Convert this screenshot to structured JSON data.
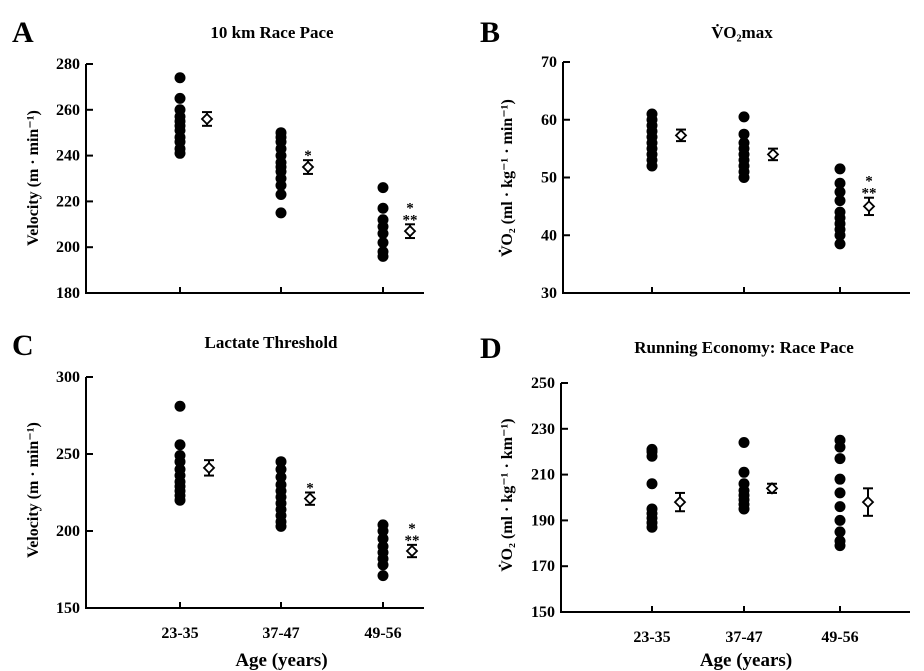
{
  "chart_data": [
    {
      "type": "scatter",
      "panel": "A",
      "title": "10 km Race Pace",
      "ylabel": "Velocity (m · min⁻¹)",
      "ylim": [
        180,
        280
      ],
      "yticks": [
        "180",
        "200",
        "220",
        "240",
        "260",
        "280"
      ],
      "categories": [
        "23-35",
        "37-47",
        "49-56"
      ],
      "points": [
        [
          241,
          243,
          246,
          248,
          251,
          253,
          255,
          257,
          260,
          265,
          274
        ],
        [
          215,
          223,
          227,
          230,
          233,
          235,
          237,
          240,
          243,
          246,
          248,
          250
        ],
        [
          196,
          198,
          202,
          206,
          209,
          212,
          217,
          226
        ]
      ],
      "means": [
        256,
        235,
        207
      ],
      "errors": [
        3,
        3,
        3
      ],
      "stars": [
        "",
        "*",
        "*\n**"
      ]
    },
    {
      "type": "scatter",
      "panel": "B",
      "title": "V̇O₂max",
      "ylabel": "V̇O₂ (ml · kg⁻¹ · min⁻¹)",
      "ylim": [
        30,
        70
      ],
      "yticks": [
        "30",
        "40",
        "50",
        "60",
        "70"
      ],
      "categories": [
        "23-35",
        "37-47",
        "49-56"
      ],
      "points": [
        [
          52,
          53,
          54,
          55,
          56,
          57,
          58,
          59,
          60,
          61
        ],
        [
          50,
          51,
          52,
          53,
          54,
          55,
          56,
          57.5,
          60.5
        ],
        [
          38.5,
          40,
          41,
          42,
          43,
          44,
          46,
          47.5,
          49,
          51.5
        ]
      ],
      "means": [
        57.3,
        54,
        45
      ],
      "errors": [
        1,
        1,
        1.5
      ],
      "stars": [
        "",
        "",
        "*\n**"
      ]
    },
    {
      "type": "scatter",
      "panel": "C",
      "title": "Lactate Threshold",
      "ylabel": "Velocity (m · min⁻¹)",
      "ylim": [
        150,
        300
      ],
      "yticks": [
        "150",
        "200",
        "250",
        "300"
      ],
      "categories": [
        "23-35",
        "37-47",
        "49-56"
      ],
      "points": [
        [
          220,
          223,
          226,
          229,
          232,
          236,
          240,
          245,
          249,
          256,
          281
        ],
        [
          203,
          206,
          210,
          214,
          218,
          222,
          226,
          230,
          235,
          240,
          245
        ],
        [
          171,
          178,
          182,
          186,
          190,
          195,
          200,
          204
        ]
      ],
      "means": [
        241,
        221,
        187
      ],
      "errors": [
        5,
        4,
        4
      ],
      "stars": [
        "",
        "*",
        "*\n**"
      ]
    },
    {
      "type": "scatter",
      "panel": "D",
      "title": "Running Economy:  Race Pace",
      "ylabel": "V̇O₂ (ml · kg⁻¹ · km⁻¹)",
      "ylim": [
        150,
        250
      ],
      "yticks": [
        "150",
        "170",
        "190",
        "210",
        "230",
        "250"
      ],
      "categories": [
        "23-35",
        "37-47",
        "49-56"
      ],
      "points": [
        [
          187,
          189,
          191,
          193,
          195,
          206,
          218,
          220,
          221
        ],
        [
          195,
          197,
          199,
          201,
          203,
          206,
          211,
          224
        ],
        [
          179,
          181,
          185,
          190,
          196,
          202,
          208,
          217,
          222,
          225
        ]
      ],
      "means": [
        198,
        204,
        198
      ],
      "errors": [
        4,
        2,
        6
      ],
      "stars": [
        "",
        "",
        ""
      ]
    }
  ],
  "xlabel": "Age (years)"
}
